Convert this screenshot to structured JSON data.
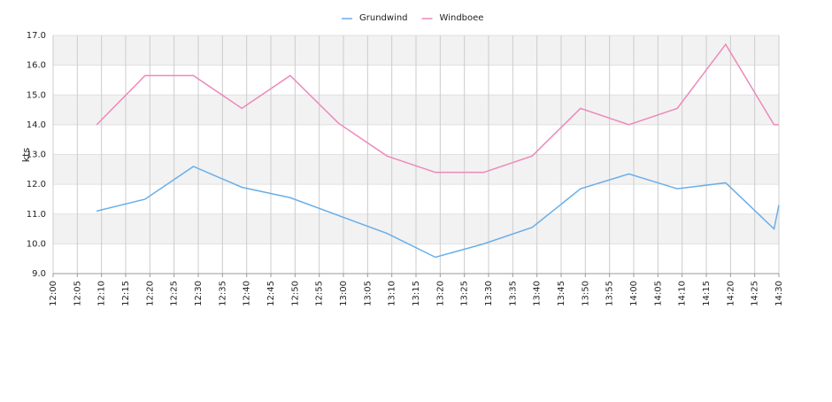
{
  "chart_data": {
    "type": "line",
    "y_label": "kts",
    "x": [
      "12:09",
      "12:19",
      "12:29",
      "12:39",
      "12:49",
      "12:59",
      "13:09",
      "13:19",
      "13:29",
      "13:39",
      "13:49",
      "13:59",
      "14:09",
      "14:19",
      "14:29",
      "14:30"
    ],
    "series": [
      {
        "name": "Grundwind",
        "color": "#6aaee8",
        "values": [
          11.1,
          11.5,
          12.6,
          11.9,
          11.55,
          10.95,
          10.35,
          9.55,
          10.0,
          10.55,
          11.85,
          12.35,
          11.85,
          12.05,
          10.5,
          11.3
        ]
      },
      {
        "name": "Windboee",
        "color": "#ee88bb",
        "values": [
          14.0,
          15.65,
          15.65,
          14.55,
          15.65,
          14.05,
          12.95,
          12.4,
          12.4,
          12.95,
          14.55,
          14.0,
          14.55,
          16.7,
          14.0,
          14.0
        ]
      }
    ],
    "xlim": [
      "12:00",
      "14:30"
    ],
    "xticks": [
      "12:00",
      "12:05",
      "12:10",
      "12:15",
      "12:20",
      "12:25",
      "12:30",
      "12:35",
      "12:40",
      "12:45",
      "12:50",
      "12:55",
      "13:00",
      "13:05",
      "13:10",
      "13:15",
      "13:20",
      "13:25",
      "13:30",
      "13:35",
      "13:40",
      "13:45",
      "13:50",
      "13:55",
      "14:00",
      "14:05",
      "14:10",
      "14:15",
      "14:20",
      "14:25",
      "14:30"
    ],
    "ylim": [
      9,
      17
    ],
    "yticks": [
      {
        "value": 9,
        "label": "9.0"
      },
      {
        "value": 10,
        "label": "10.0"
      },
      {
        "value": 11,
        "label": "11.0"
      },
      {
        "value": 12,
        "label": "12.0"
      },
      {
        "value": 13,
        "label": "13.0"
      },
      {
        "value": 14,
        "label": "14.0"
      },
      {
        "value": 15,
        "label": "15.0"
      },
      {
        "value": 16,
        "label": "16.0"
      },
      {
        "value": 17,
        "label": "17.0"
      }
    ],
    "grid": true,
    "legend": "top"
  }
}
